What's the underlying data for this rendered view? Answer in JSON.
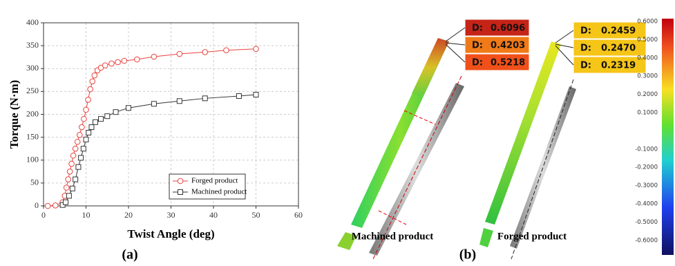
{
  "chart_data": {
    "type": "line",
    "x_label": "Twist Angle (deg)",
    "y_label": "Torque (N·m)",
    "xlim": [
      0,
      60
    ],
    "xticks": [
      0,
      10,
      20,
      30,
      40,
      50,
      60
    ],
    "ylim": [
      0,
      400
    ],
    "yticks": [
      0,
      50,
      100,
      150,
      200,
      250,
      300,
      350,
      400
    ],
    "grid": true,
    "legend": "lower right",
    "series": [
      {
        "name": "Forged product",
        "color": "#e8413c",
        "marker": "circle",
        "x": [
          1,
          2.8,
          4.5,
          5,
          5.4,
          5.8,
          6.2,
          6.6,
          7,
          7.5,
          8,
          8.5,
          9,
          9.5,
          10,
          10.5,
          11,
          11.5,
          12,
          12.7,
          13.5,
          14.5,
          16,
          17.5,
          19,
          22,
          26,
          32,
          38,
          43,
          50
        ],
        "values": [
          0,
          1,
          8,
          22,
          40,
          58,
          75,
          92,
          110,
          125,
          140,
          155,
          172,
          190,
          210,
          232,
          255,
          272,
          285,
          296,
          302,
          307,
          311,
          314,
          317,
          320,
          326,
          332,
          336,
          340,
          343
        ]
      },
      {
        "name": "Machined product",
        "color": "#333333",
        "marker": "square",
        "x": [
          4.5,
          5.2,
          6,
          6.8,
          7.5,
          8.2,
          8.8,
          9.4,
          10,
          10.6,
          11.3,
          12.2,
          13.5,
          15,
          17,
          20,
          26,
          32,
          38,
          46,
          50
        ],
        "values": [
          2,
          8,
          22,
          38,
          58,
          85,
          105,
          125,
          145,
          160,
          172,
          183,
          190,
          196,
          205,
          214,
          223,
          229,
          235,
          240,
          243
        ]
      }
    ]
  },
  "panel_a_label": "(a)",
  "panel_b": {
    "label": "(b)",
    "left_caption": "Machined product",
    "right_caption": "Forged product",
    "d_prefix": "D:",
    "left_boxes": [
      "0.6096",
      "0.4203",
      "0.5218"
    ],
    "right_boxes": [
      "0.2459",
      "0.2470",
      "0.2319"
    ],
    "colorbar_labels": [
      "0.6000",
      "0.5000",
      "0.4000",
      "0.3000",
      "0.2000",
      "0.1000",
      "-0.1000",
      "-0.2000",
      "-0.3000",
      "-0.4000",
      "-0.5000",
      "-0.6000"
    ]
  }
}
